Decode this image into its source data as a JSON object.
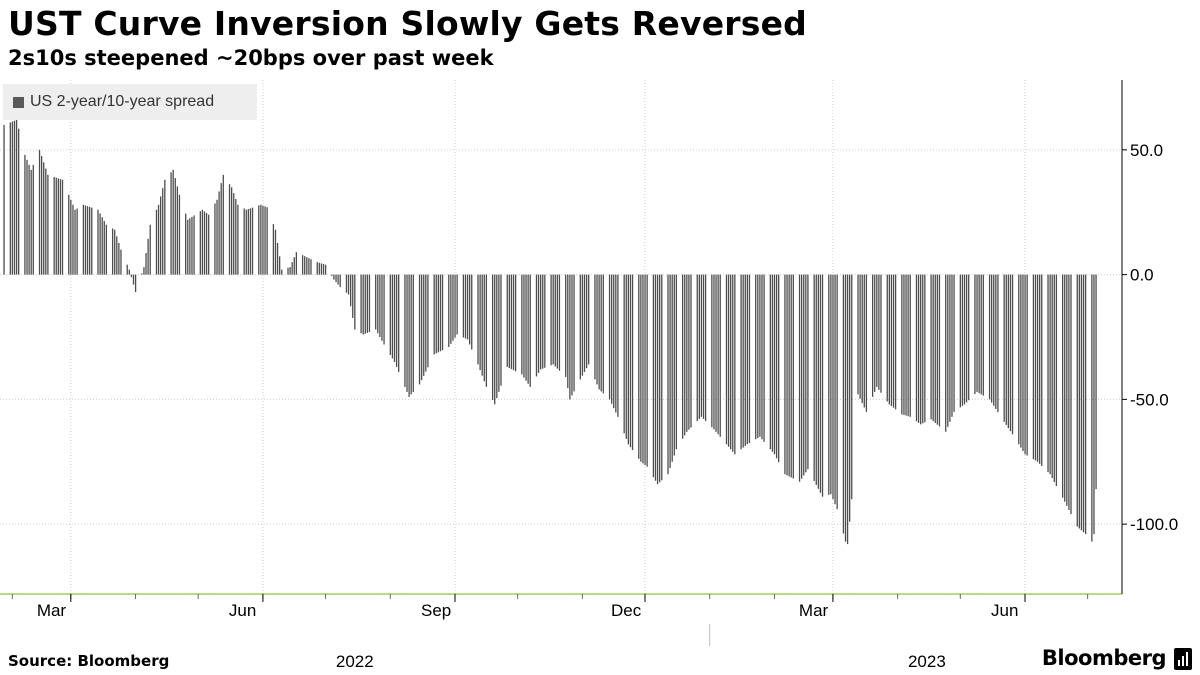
{
  "header": {
    "title": "UST Curve Inversion Slowly Gets Reversed",
    "subtitle": "2s10s steepened ~20bps over past week"
  },
  "legend": {
    "label": "US 2-year/10-year spread"
  },
  "footer": {
    "source": "Source: Bloomberg",
    "brand": "Bloomberg"
  },
  "colors": {
    "bars": "#4d4d4d",
    "axis": "#a3cf56",
    "grid": "#cccccc"
  },
  "chart_data": {
    "type": "bar",
    "title": "UST Curve Inversion Slowly Gets Reversed",
    "subtitle": "2s10s steepened ~20bps over past week",
    "series_name": "US 2-year/10-year spread",
    "x_range": [
      "2022-01-28",
      "2023-07-05"
    ],
    "ylim": [
      -128,
      78
    ],
    "yticks": [
      50.0,
      0.0,
      -50.0,
      -100.0
    ],
    "ytick_labels": [
      "50.0",
      "0.0",
      "-50.0",
      "-100.0"
    ],
    "y_axis_position": "right",
    "grid": true,
    "legend_position": "top-left",
    "month_ticks": [
      {
        "date": "2022-03-01",
        "label": "Mar"
      },
      {
        "date": "2022-06-01",
        "label": "Jun"
      },
      {
        "date": "2022-09-01",
        "label": "Sep"
      },
      {
        "date": "2022-12-01",
        "label": "Dec"
      },
      {
        "date": "2023-03-01",
        "label": "Mar"
      },
      {
        "date": "2023-06-01",
        "label": "Jun"
      }
    ],
    "year_labels": [
      {
        "center": "2022-07-15",
        "label": "2022"
      },
      {
        "center": "2023-04-15",
        "label": "2023"
      }
    ],
    "year_dividers": [
      "2023-01-01"
    ],
    "anchors": [
      [
        "2022-01-28",
        60
      ],
      [
        "2022-02-03",
        62
      ],
      [
        "2022-02-07",
        48
      ],
      [
        "2022-02-10",
        42
      ],
      [
        "2022-02-14",
        50
      ],
      [
        "2022-02-18",
        40
      ],
      [
        "2022-02-25",
        38
      ],
      [
        "2022-03-03",
        26
      ],
      [
        "2022-03-07",
        28
      ],
      [
        "2022-03-14",
        26
      ],
      [
        "2022-03-18",
        20
      ],
      [
        "2022-03-22",
        18
      ],
      [
        "2022-03-25",
        10
      ],
      [
        "2022-03-29",
        2
      ],
      [
        "2022-04-01",
        -7
      ],
      [
        "2022-04-05",
        3
      ],
      [
        "2022-04-08",
        20
      ],
      [
        "2022-04-12",
        28
      ],
      [
        "2022-04-15",
        38
      ],
      [
        "2022-04-19",
        42
      ],
      [
        "2022-04-22",
        32
      ],
      [
        "2022-04-26",
        22
      ],
      [
        "2022-05-03",
        26
      ],
      [
        "2022-05-06",
        24
      ],
      [
        "2022-05-10",
        30
      ],
      [
        "2022-05-13",
        40
      ],
      [
        "2022-05-17",
        35
      ],
      [
        "2022-05-20",
        28
      ],
      [
        "2022-05-24",
        26
      ],
      [
        "2022-05-31",
        28
      ],
      [
        "2022-06-03",
        27
      ],
      [
        "2022-06-07",
        18
      ],
      [
        "2022-06-10",
        2
      ],
      [
        "2022-06-14",
        3
      ],
      [
        "2022-06-17",
        9
      ],
      [
        "2022-06-22",
        7
      ],
      [
        "2022-06-27",
        5
      ],
      [
        "2022-07-01",
        4
      ],
      [
        "2022-07-05",
        -2
      ],
      [
        "2022-07-08",
        -5
      ],
      [
        "2022-07-12",
        -8
      ],
      [
        "2022-07-15",
        -22
      ],
      [
        "2022-07-19",
        -24
      ],
      [
        "2022-07-25",
        -22
      ],
      [
        "2022-07-29",
        -28
      ],
      [
        "2022-08-03",
        -35
      ],
      [
        "2022-08-08",
        -45
      ],
      [
        "2022-08-10",
        -49
      ],
      [
        "2022-08-15",
        -44
      ],
      [
        "2022-08-22",
        -32
      ],
      [
        "2022-08-29",
        -29
      ],
      [
        "2022-09-02",
        -24
      ],
      [
        "2022-09-07",
        -26
      ],
      [
        "2022-09-12",
        -36
      ],
      [
        "2022-09-16",
        -45
      ],
      [
        "2022-09-20",
        -52
      ],
      [
        "2022-09-26",
        -37
      ],
      [
        "2022-10-03",
        -40
      ],
      [
        "2022-10-07",
        -45
      ],
      [
        "2022-10-12",
        -38
      ],
      [
        "2022-10-18",
        -36
      ],
      [
        "2022-10-24",
        -41
      ],
      [
        "2022-10-26",
        -50
      ],
      [
        "2022-10-31",
        -42
      ],
      [
        "2022-11-04",
        -36
      ],
      [
        "2022-11-09",
        -46
      ],
      [
        "2022-11-14",
        -50
      ],
      [
        "2022-11-18",
        -57
      ],
      [
        "2022-11-23",
        -68
      ],
      [
        "2022-11-29",
        -75
      ],
      [
        "2022-12-02",
        -77
      ],
      [
        "2022-12-07",
        -84
      ],
      [
        "2022-12-12",
        -80
      ],
      [
        "2022-12-16",
        -70
      ],
      [
        "2022-12-21",
        -63
      ],
      [
        "2022-12-28",
        -57
      ],
      [
        "2023-01-03",
        -62
      ],
      [
        "2023-01-09",
        -68
      ],
      [
        "2023-01-13",
        -72
      ],
      [
        "2023-01-19",
        -68
      ],
      [
        "2023-01-25",
        -65
      ],
      [
        "2023-02-01",
        -72
      ],
      [
        "2023-02-06",
        -80
      ],
      [
        "2023-02-13",
        -83
      ],
      [
        "2023-02-17",
        -78
      ],
      [
        "2023-02-24",
        -89
      ],
      [
        "2023-02-28",
        -88
      ],
      [
        "2023-03-03",
        -94
      ],
      [
        "2023-03-07",
        -107
      ],
      [
        "2023-03-08",
        -108
      ],
      [
        "2023-03-10",
        -90
      ],
      [
        "2023-03-13",
        -48
      ],
      [
        "2023-03-17",
        -55
      ],
      [
        "2023-03-22",
        -45
      ],
      [
        "2023-03-28",
        -52
      ],
      [
        "2023-04-03",
        -56
      ],
      [
        "2023-04-07",
        -57
      ],
      [
        "2023-04-12",
        -60
      ],
      [
        "2023-04-17",
        -58
      ],
      [
        "2023-04-24",
        -63
      ],
      [
        "2023-04-28",
        -55
      ],
      [
        "2023-05-03",
        -52
      ],
      [
        "2023-05-09",
        -47
      ],
      [
        "2023-05-15",
        -50
      ],
      [
        "2023-05-22",
        -59
      ],
      [
        "2023-05-26",
        -64
      ],
      [
        "2023-06-01",
        -72
      ],
      [
        "2023-06-07",
        -75
      ],
      [
        "2023-06-13",
        -80
      ],
      [
        "2023-06-20",
        -91
      ],
      [
        "2023-06-26",
        -101
      ],
      [
        "2023-06-30",
        -104
      ],
      [
        "2023-07-03",
        -107
      ],
      [
        "2023-07-04",
        -104
      ],
      [
        "2023-07-05",
        -86
      ]
    ]
  }
}
